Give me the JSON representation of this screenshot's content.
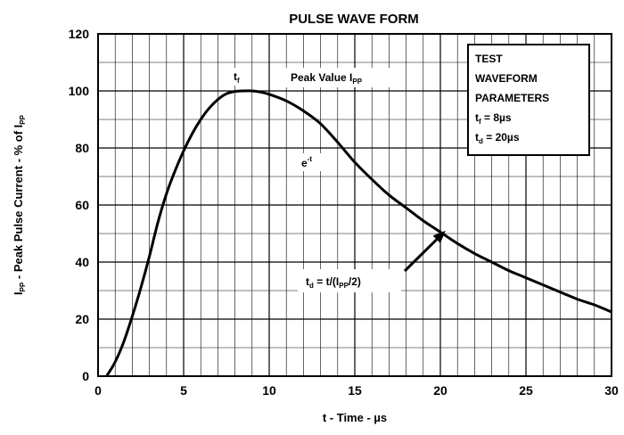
{
  "chart_data": {
    "type": "line",
    "title": "PULSE WAVE FORM",
    "xlabel": "t - Time - µs",
    "ylabel": {
      "p1": "I",
      "p1_sub": "PP",
      "p2": " - Peak Pulse Current - % of I",
      "p2_sub": "PP"
    },
    "xlim": [
      0,
      30
    ],
    "ylim": [
      0,
      120
    ],
    "x_ticks": [
      0,
      5,
      10,
      15,
      20,
      25,
      30
    ],
    "y_ticks": [
      0,
      20,
      40,
      60,
      80,
      100,
      120
    ],
    "grid": true,
    "series": [
      {
        "x": [
          0.5,
          1,
          1.5,
          2,
          2.5,
          3,
          3.5,
          4,
          4.5,
          5,
          5.5,
          6,
          6.5,
          7,
          7.5,
          8,
          8.5,
          9,
          9.5,
          10,
          11,
          12,
          13,
          14,
          15,
          16,
          17,
          18,
          19,
          20,
          21,
          22,
          23,
          24,
          25,
          26,
          27,
          28,
          29,
          30
        ],
        "y": [
          0,
          5,
          12,
          21,
          31,
          42,
          54,
          64,
          72,
          79,
          85,
          90,
          94,
          97,
          99,
          99.8,
          100,
          100,
          99.6,
          98.8,
          96.5,
          93,
          88.5,
          82,
          75,
          69,
          63.5,
          59,
          54.5,
          50.5,
          46.5,
          43,
          40,
          37,
          34.5,
          32,
          29.5,
          27,
          25,
          22.5
        ]
      }
    ],
    "annotations": {
      "tf_label": {
        "main": "t",
        "sub": "f"
      },
      "peak_label": {
        "main": "Peak Value I",
        "sub": "PP"
      },
      "exp_label": {
        "main": "e",
        "sup": "-t"
      },
      "td_label": {
        "p1": "t",
        "p1_sub": "d",
        "p2": " = t/(I",
        "p2_sub": "PP",
        "p3": "/2)"
      },
      "arrow_target": {
        "x": 20.3,
        "y": 51
      }
    },
    "legend_box": {
      "line1": "TEST",
      "line2": "WAVEFORM",
      "line3": "PARAMETERS",
      "line4": {
        "p1": "t",
        "p1_sub": "f",
        "p2": " = 8µs"
      },
      "line5": {
        "p1": "t",
        "p1_sub": "d",
        "p2": " = 20µs"
      }
    }
  }
}
